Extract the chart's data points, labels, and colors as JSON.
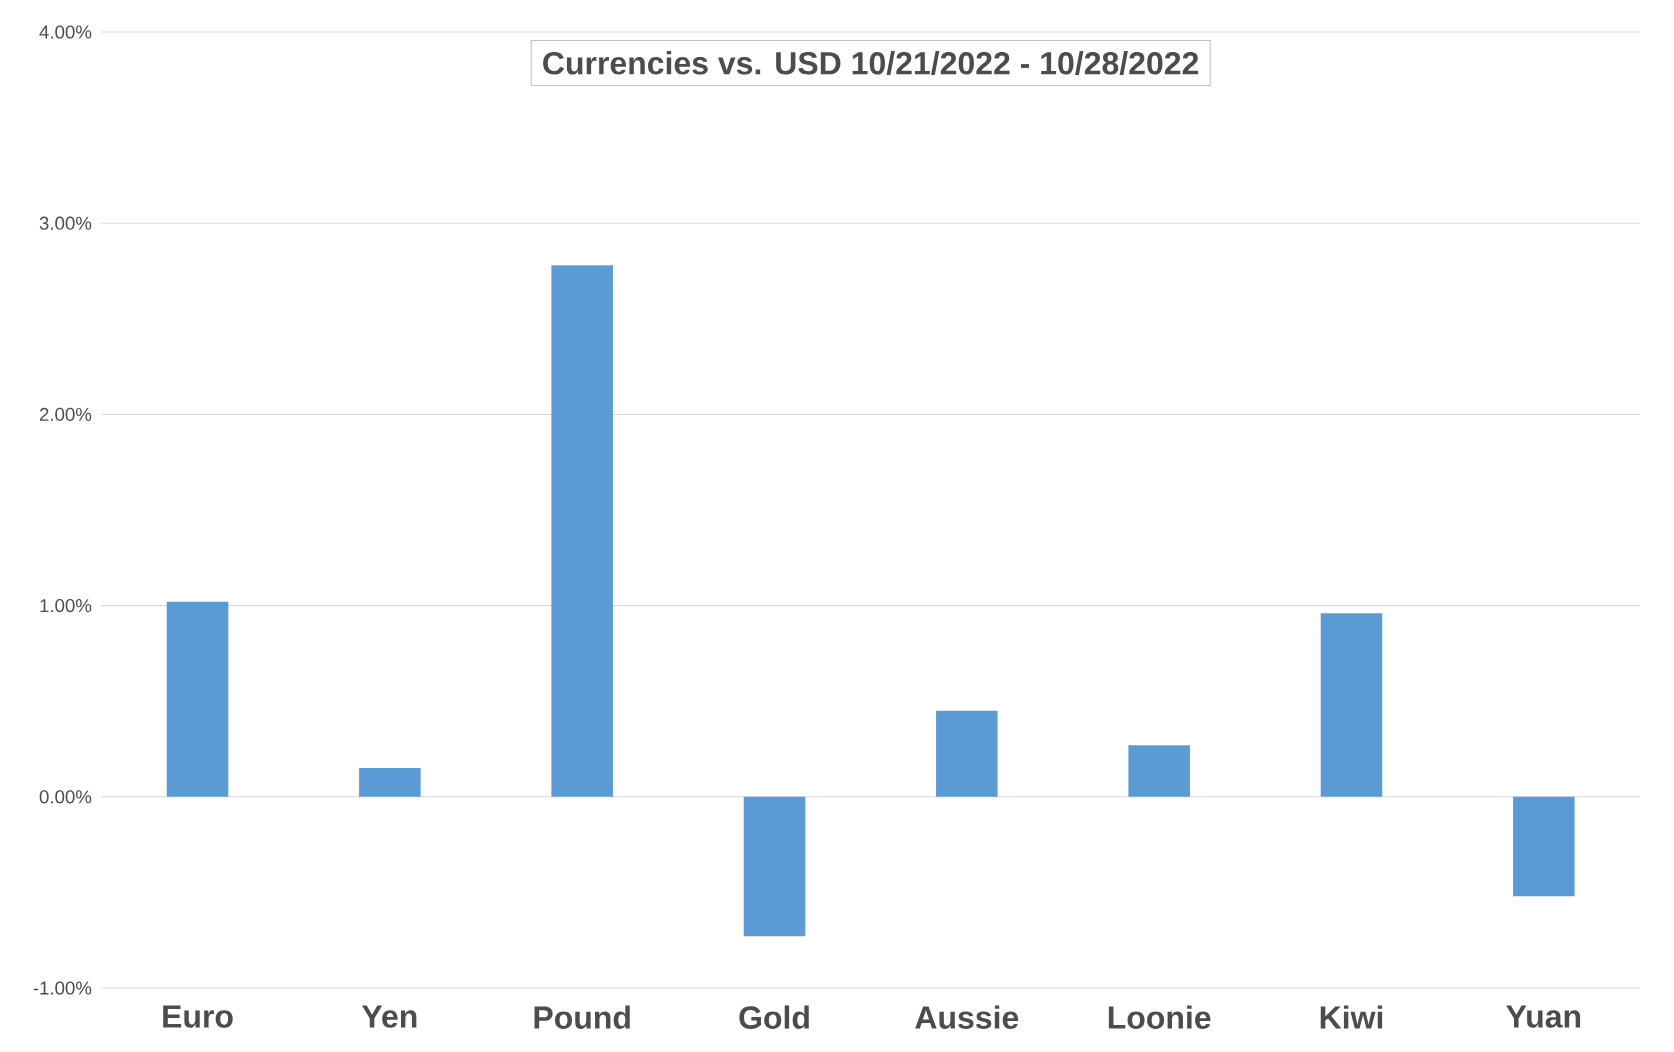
{
  "chart_data": {
    "type": "bar",
    "title": "Currencies vs. USD 10/21/2022 - 10/28/2022",
    "categories": [
      "Euro",
      "Yen",
      "Pound",
      "Gold",
      "Aussie",
      "Loonie",
      "Kiwi",
      "Yuan"
    ],
    "values": [
      1.02,
      0.15,
      2.78,
      -0.73,
      0.45,
      0.27,
      0.96,
      -0.52
    ],
    "color": "#5b9bd5",
    "ylim": [
      -1,
      4
    ],
    "yticks": [
      {
        "value": -1,
        "label": "-1.00%"
      },
      {
        "value": 0,
        "label": "0.00%"
      },
      {
        "value": 1,
        "label": "1.00%"
      },
      {
        "value": 2,
        "label": "2.00%"
      },
      {
        "value": 3,
        "label": "3.00%"
      },
      {
        "value": 4,
        "label": "4.00%"
      }
    ],
    "grid": "y"
  }
}
